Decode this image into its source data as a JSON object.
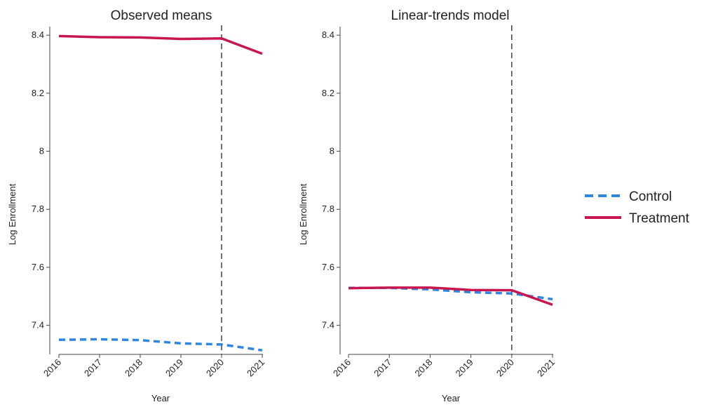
{
  "legend": {
    "entries": [
      {
        "label": "Control",
        "color": "#2f86e0",
        "style": "dashed"
      },
      {
        "label": "Treatment",
        "color": "#c8174f",
        "style": "solid"
      }
    ]
  },
  "chart_data": [
    {
      "type": "line",
      "title": "Observed means",
      "xlabel": "Year",
      "ylabel": "Log Enrollment",
      "x": [
        2016,
        2017,
        2018,
        2019,
        2020,
        2021
      ],
      "xticks": [
        "2016",
        "2017",
        "2018",
        "2019",
        "2020",
        "2021"
      ],
      "yticks": [
        "7.4",
        "7.6",
        "7.8",
        "8",
        "8.2",
        "8.4"
      ],
      "ytick_values": [
        7.4,
        7.6,
        7.8,
        8.0,
        8.2,
        8.4
      ],
      "ylim": [
        7.3,
        8.41
      ],
      "vline_x": 2020,
      "series": [
        {
          "name": "Control",
          "color": "#2f86e0",
          "style": "dashed",
          "values": [
            7.35,
            7.352,
            7.349,
            7.338,
            7.334,
            7.314
          ]
        },
        {
          "name": "Treatment",
          "color": "#c8174f",
          "style": "solid",
          "values": [
            8.397,
            8.393,
            8.392,
            8.387,
            8.389,
            8.336
          ]
        }
      ]
    },
    {
      "type": "line",
      "title": "Linear-trends model",
      "xlabel": "Year",
      "ylabel": "Log Enrollment",
      "x": [
        2016,
        2017,
        2018,
        2019,
        2020,
        2021
      ],
      "xticks": [
        "2016",
        "2017",
        "2018",
        "2019",
        "2020",
        "2021"
      ],
      "yticks": [
        "7.4",
        "7.6",
        "7.8",
        "8",
        "8.2",
        "8.4"
      ],
      "ytick_values": [
        7.4,
        7.6,
        7.8,
        8.0,
        8.2,
        8.4
      ],
      "ylim": [
        7.3,
        8.41
      ],
      "vline_x": 2020,
      "series": [
        {
          "name": "Control",
          "color": "#2f86e0",
          "style": "dashed",
          "values": [
            7.529,
            7.529,
            7.524,
            7.514,
            7.51,
            7.49
          ]
        },
        {
          "name": "Treatment",
          "color": "#c8174f",
          "style": "solid",
          "values": [
            7.528,
            7.53,
            7.53,
            7.522,
            7.521,
            7.471
          ]
        }
      ]
    }
  ]
}
